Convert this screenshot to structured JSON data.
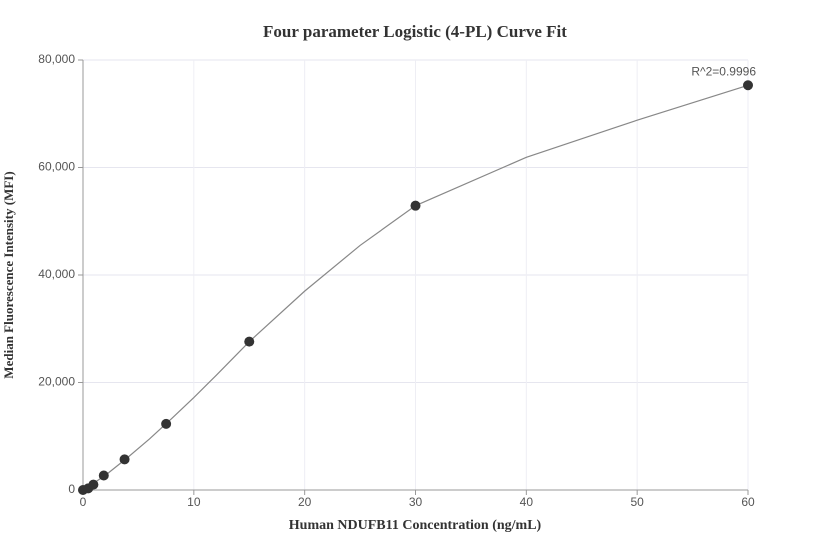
{
  "chart_data": {
    "type": "scatter",
    "title": "Four parameter Logistic (4-PL) Curve Fit",
    "xlabel": "Human NDUFB11 Concentration (ng/mL)",
    "ylabel": "Median Fluorescence Intensity (MFI)",
    "annotation": "R^2=0.9996",
    "x": [
      0,
      0.469,
      0.938,
      1.875,
      3.75,
      7.5,
      15,
      30,
      60
    ],
    "values": [
      0,
      300,
      1000,
      2700,
      5700,
      12300,
      27600,
      52900,
      75300
    ],
    "color": "#333333",
    "curve": {
      "x": [
        0,
        2,
        4,
        6,
        8,
        10,
        12,
        15,
        20,
        25,
        30,
        40,
        50,
        60
      ],
      "values": [
        0,
        2700,
        6000,
        9500,
        13300,
        17200,
        21300,
        27600,
        37000,
        45500,
        52900,
        61900,
        68800,
        75300
      ],
      "color": "#888888"
    },
    "xlim": [
      0,
      60
    ],
    "xticks": [
      0,
      10,
      20,
      30,
      40,
      50,
      60
    ],
    "ylim": [
      0,
      80000
    ],
    "yticks": [
      0,
      {
        "value": 20000,
        "label": "20,000"
      },
      {
        "value": 40000,
        "label": "40,000"
      },
      {
        "value": 60000,
        "label": "60,000"
      },
      {
        "value": 80000,
        "label": "80,000"
      }
    ],
    "grid": true
  }
}
